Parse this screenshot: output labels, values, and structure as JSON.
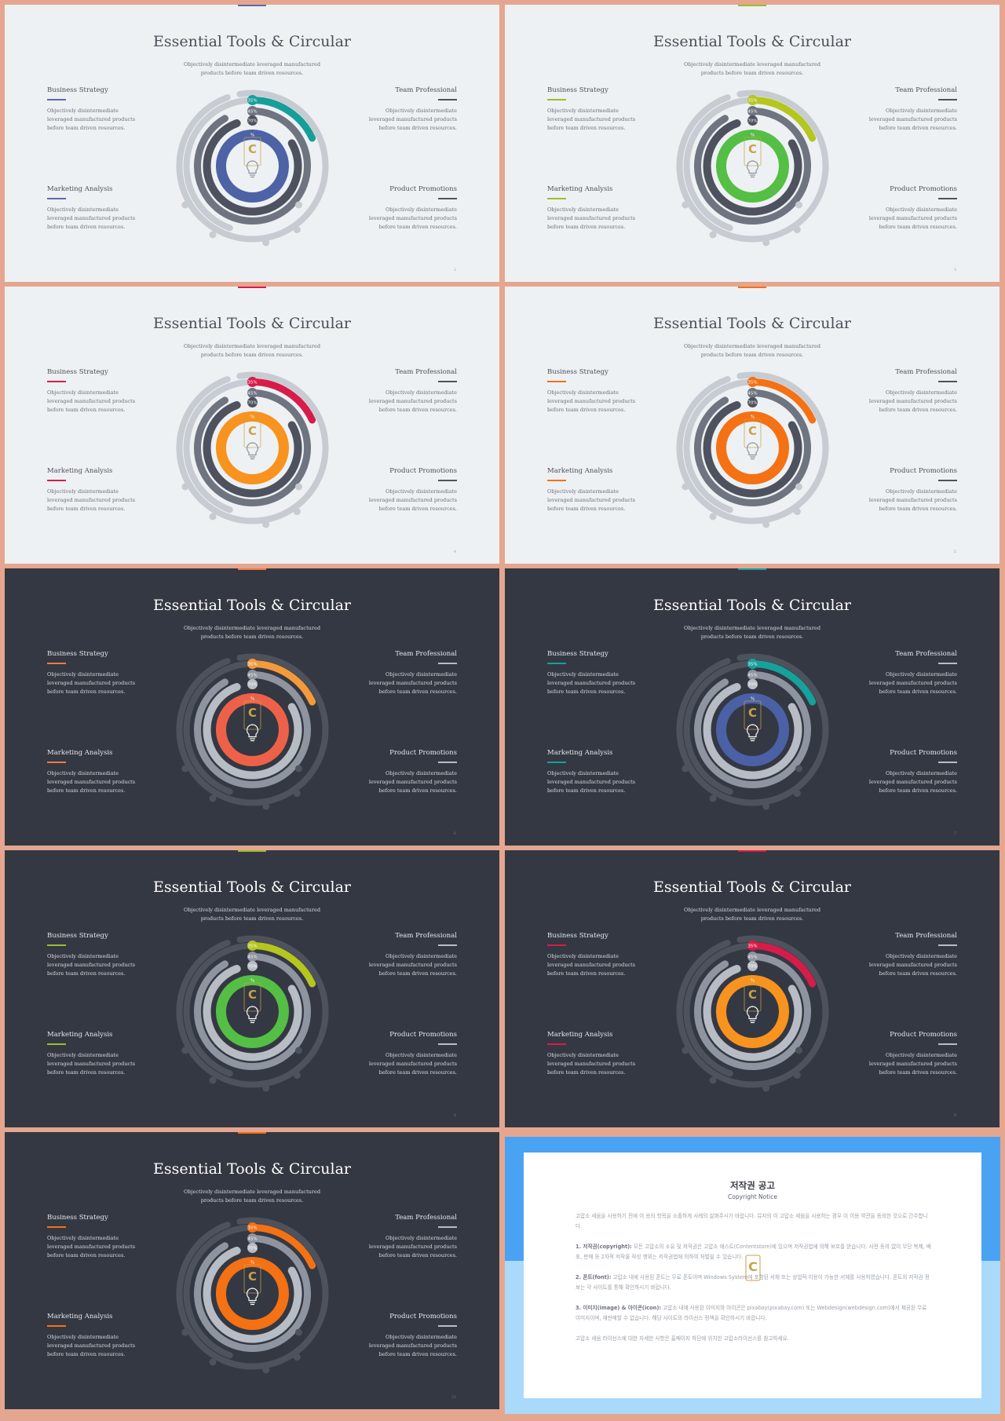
{
  "slides": [
    {
      "id": 0,
      "theme": "light",
      "page": "2",
      "colors": {
        "outer": "#169E9A",
        "inner": "#4E63A6",
        "accent_line": "#5F67A8"
      }
    },
    {
      "id": 1,
      "theme": "light",
      "page": "3",
      "colors": {
        "outer": "#B4C61F",
        "inner": "#54BF44",
        "accent_line": "#9BBE2D"
      }
    },
    {
      "id": 2,
      "theme": "light",
      "page": "4",
      "colors": {
        "outer": "#D71C4A",
        "inner": "#F7931E",
        "accent_line": "#D71C4A"
      }
    },
    {
      "id": 3,
      "theme": "light",
      "page": "5",
      "colors": {
        "outer": "#F47114",
        "inner": "#F47114",
        "accent_line": "#F47114"
      }
    },
    {
      "id": 4,
      "theme": "dark",
      "page": "6",
      "colors": {
        "outer": "#F39A3B",
        "inner": "#EE6149",
        "accent_line": "#EF7A47"
      }
    },
    {
      "id": 5,
      "theme": "dark",
      "page": "7",
      "colors": {
        "outer": "#16A19B",
        "inner": "#4B61A6",
        "accent_line": "#16A19B"
      }
    },
    {
      "id": 6,
      "theme": "dark",
      "page": "8",
      "colors": {
        "outer": "#B4C61F",
        "inner": "#54BF44",
        "accent_line": "#9BBE2D"
      }
    },
    {
      "id": 7,
      "theme": "dark",
      "page": "9",
      "colors": {
        "outer": "#D71C4A",
        "inner": "#F7931E",
        "accent_line": "#D71C4A"
      }
    },
    {
      "id": 8,
      "theme": "dark",
      "page": "10",
      "colors": {
        "outer": "#F47114",
        "inner": "#F47114",
        "accent_line": "#F47114"
      }
    }
  ],
  "content": {
    "title": "Essential Tools & Circular",
    "subtitle": "Objectively disintermediate leveraged manufactured products before team driven resources.",
    "blocks": [
      {
        "title": "Business Strategy",
        "desc": "Objectively disintermediate leveraged manufactured products before team driven resources."
      },
      {
        "title": "Team Professional",
        "desc": "Objectively disintermediate leveraged manufactured products before team driven resources."
      },
      {
        "title": "Marketing Analysis",
        "desc": "Objectively disintermediate leveraged manufactured products before team driven resources."
      },
      {
        "title": "Product Promotions",
        "desc": "Objectively disintermediate leveraged manufactured products before team driven resources."
      }
    ],
    "ring_labels": [
      "35%",
      "45%",
      "70%",
      "%"
    ],
    "ring_values": [
      35,
      45,
      70
    ],
    "bulb_icon": "lightbulb-icon",
    "watermark_icon": "contents-logo-icon"
  },
  "palette": {
    "light": {
      "bg": "#EEF1F3",
      "track": "#C7CBD2",
      "ring_mid": "#6E7480",
      "ring_dark": "#4D525E",
      "bulb": "#8C919A"
    },
    "dark": {
      "bg": "#343842",
      "track": "#4D525D",
      "ring_mid": "#8F95A0",
      "ring_dark": "#B7BCC5",
      "bulb": "#FFFFFF"
    }
  },
  "notice": {
    "title": "저작권 공고",
    "subtitle": "Copyright Notice",
    "para1": "고맙소 세움을 사용하기 전에 이 용의 항목을 소홀하게 사례의 살펴주시기 바랍니다. 뮤자의 이 고맙소 세움을 사용하는 경우 이 이용 약관을 동의한 것으로 간주합니다.",
    "para2_lead": "1. 저작권(copyright):",
    "para2": " 모든 고맙소의 소유 및 저작권은 고맙소 에스트(Contentstore)에 있으며 저작권법에 의해 보호를 받습니다. 사전 동의 없이 무단 복제, 배포, 판매 등 2차적 저작물 작성 행위는 저작권법에 의하여 처벌될 수 있습니다.",
    "para3_lead": "2. 폰트(font):",
    "para3": " 고맙소 내에 사용된 폰트는 무료 폰트이며 Windows System에 포함된 서체 또는 상업적 이용이 가능한 서체를 사용하였습니다. 폰트의 저작권 정보는 각 사이트를 통해 확인하시기 바랍니다.",
    "para4_lead": "3. 이미지(image) & 아이콘(icon):",
    "para4": " 고맙소 내에 사용된 이미지와 아이콘은 pixabay(pixabay.com) 또는 Webdesign(webdesign.com)에서 제공된 무료 이미지이며, 재판매할 수 없습니다. 해당 사이트의 라이선스 정책을 확인하시기 바랍니다.",
    "para5": "고맙소 세움 라이선스에 대한 자세한 사항은 홈페이지 하단에 위치한 고맙소라이선스를 참고하세요."
  }
}
